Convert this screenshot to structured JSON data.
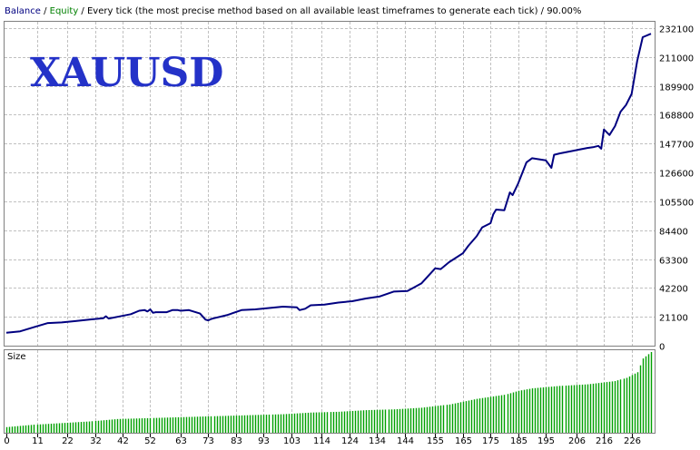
{
  "header": {
    "balance": "Balance",
    "sep1": " / ",
    "equity": "Equity",
    "rest": " / Every tick (the most precise method based on all available least timeframes to generate each tick) / 90.00%"
  },
  "watermark": "XAUUSD",
  "size_label": "Size",
  "colors": {
    "balance": "#000080",
    "equity": "#008000",
    "size_bars": "#00a000",
    "grid": "#c0c0c0",
    "watermark": "#2432c8"
  },
  "chart_data": [
    {
      "type": "line",
      "xlabel": "",
      "ylabel": "",
      "xlim": [
        0,
        233
      ],
      "ylim": [
        0,
        232100
      ],
      "yticks": [
        0,
        21100,
        42200,
        63300,
        84400,
        105500,
        126600,
        147700,
        168800,
        189900,
        211000,
        232100
      ],
      "xticks": [
        0,
        11,
        22,
        32,
        42,
        52,
        63,
        73,
        83,
        93,
        103,
        114,
        124,
        134,
        144,
        155,
        165,
        175,
        185,
        195,
        206,
        216,
        226
      ],
      "grid": true,
      "series": [
        {
          "name": "Balance",
          "x": [
            0,
            5,
            10,
            15,
            20,
            25,
            30,
            35,
            36,
            37,
            40,
            45,
            48,
            50,
            51,
            52,
            53,
            54,
            58,
            60,
            62,
            63,
            66,
            70,
            72,
            73,
            74,
            75,
            80,
            85,
            90,
            100,
            105,
            106,
            108,
            110,
            115,
            120,
            125,
            130,
            135,
            140,
            145,
            150,
            155,
            157,
            160,
            165,
            167,
            170,
            172,
            175,
            176,
            177,
            180,
            182,
            183,
            185,
            188,
            190,
            195,
            197,
            198,
            200,
            205,
            210,
            212,
            214,
            215,
            216,
            218,
            220,
            222,
            224,
            226,
            228,
            230,
            233
          ],
          "y": [
            9500,
            10500,
            13500,
            16500,
            17000,
            18000,
            19000,
            20000,
            21500,
            19800,
            21000,
            23000,
            25500,
            26000,
            25000,
            26500,
            24000,
            24500,
            24500,
            26000,
            26000,
            25500,
            26000,
            23500,
            19000,
            18500,
            19500,
            20000,
            22500,
            26000,
            26500,
            28500,
            28000,
            26000,
            27000,
            29500,
            30000,
            31500,
            32500,
            34500,
            36000,
            39500,
            40000,
            45500,
            56500,
            56000,
            61000,
            67500,
            73000,
            80000,
            86500,
            89500,
            96000,
            99500,
            99000,
            112000,
            110000,
            118500,
            134000,
            137000,
            135500,
            130000,
            139500,
            140500,
            142500,
            144500,
            145000,
            146000,
            144000,
            158000,
            154000,
            160500,
            171000,
            176000,
            184000,
            208000,
            225500,
            228000
          ]
        }
      ]
    },
    {
      "type": "bar",
      "xlim": [
        0,
        233
      ],
      "series": [
        {
          "name": "Size",
          "x": [
            0,
            10,
            20,
            30,
            40,
            50,
            60,
            70,
            80,
            90,
            100,
            110,
            120,
            130,
            140,
            150,
            160,
            170,
            180,
            185,
            190,
            200,
            210,
            215,
            220,
            224,
            228,
            230,
            233
          ],
          "values": [
            0.07,
            0.1,
            0.12,
            0.14,
            0.17,
            0.18,
            0.19,
            0.2,
            0.21,
            0.22,
            0.23,
            0.25,
            0.26,
            0.28,
            0.29,
            0.31,
            0.35,
            0.42,
            0.47,
            0.52,
            0.55,
            0.58,
            0.6,
            0.62,
            0.64,
            0.68,
            0.75,
            0.92,
            1.0
          ]
        }
      ]
    }
  ]
}
